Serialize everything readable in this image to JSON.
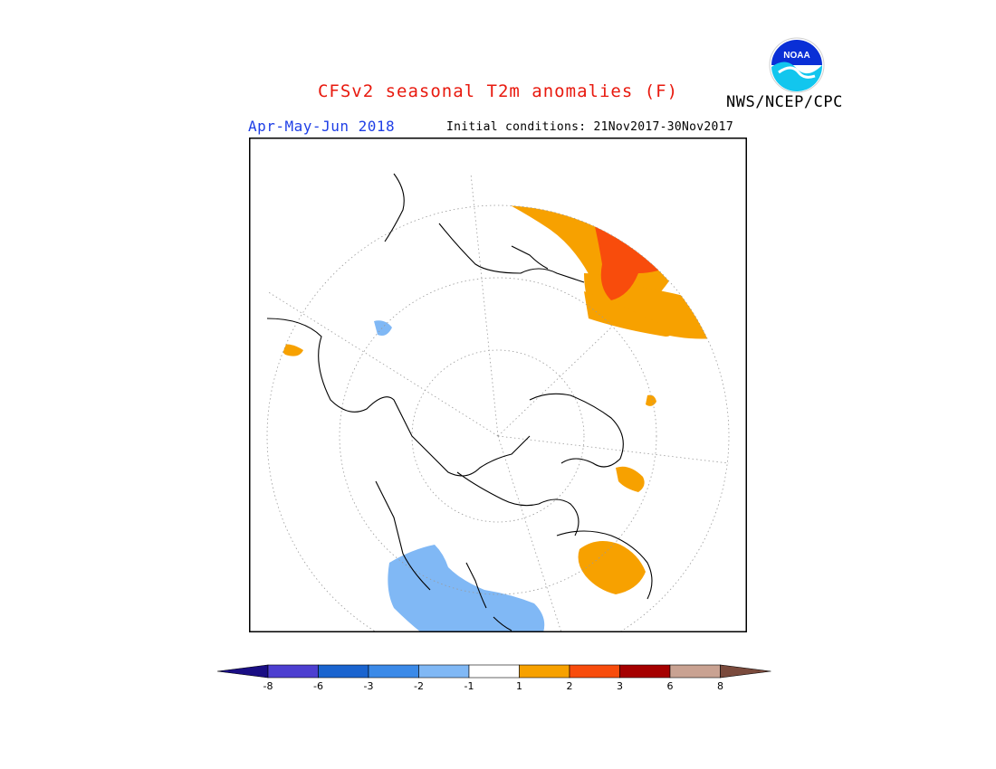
{
  "header": {
    "title": "CFSv2 seasonal T2m anomalies (F)",
    "season": "Apr-May-Jun 2018",
    "initial_conditions": "Initial conditions: 21Nov2017-30Nov2017",
    "agency": "NWS/NCEP/CPC"
  },
  "logo": {
    "text": "NOAA"
  },
  "colors": {
    "title": "#e8190e",
    "season": "#1f3fe6",
    "warm1": "#f7a100",
    "warm2": "#f84c0c",
    "warm3": "#a50000",
    "cool1": "#80b8f5",
    "land_outline": "#000000"
  },
  "colorbar": {
    "labels": [
      "-8",
      "-6",
      "-3",
      "-2",
      "-1",
      "1",
      "2",
      "3",
      "6",
      "8"
    ],
    "colors": [
      "#1a0e84",
      "#4d3fd0",
      "#1a64cf",
      "#3b8ae8",
      "#80b8f5",
      "#ffffff",
      "#f7a100",
      "#f84c0c",
      "#a50000",
      "#c9a292",
      "#7a4a3c"
    ]
  }
}
